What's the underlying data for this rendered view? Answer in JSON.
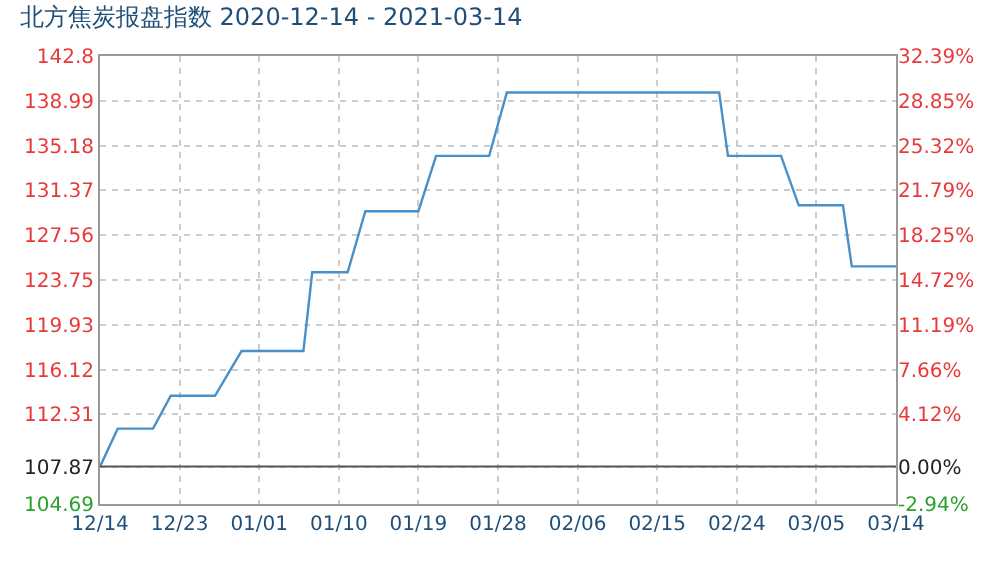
{
  "chart_data": {
    "type": "line",
    "title": "北方焦炭报盘指数 2020-12-14 - 2021-03-14",
    "x": [
      "2020-12-14",
      "2020-12-16",
      "2020-12-20",
      "2020-12-22",
      "2020-12-27",
      "2020-12-30",
      "2021-01-06",
      "2021-01-07",
      "2021-01-11",
      "2021-01-13",
      "2021-01-19",
      "2021-01-21",
      "2021-01-27",
      "2021-01-29",
      "2021-02-22",
      "2021-02-23",
      "2021-03-01",
      "2021-03-03",
      "2021-03-08",
      "2021-03-09",
      "2021-03-14"
    ],
    "series": [
      {
        "color": "#4a90c8",
        "values": [
          107.87,
          111.1,
          111.1,
          113.9,
          113.9,
          117.7,
          117.7,
          124.4,
          124.4,
          129.6,
          129.6,
          134.3,
          134.3,
          139.7,
          139.7,
          134.3,
          134.3,
          130.1,
          130.1,
          124.9,
          124.9
        ]
      }
    ],
    "xlim": [
      "2020-12-14",
      "2021-03-14"
    ],
    "xticks": [
      {
        "value": "2020-12-14",
        "label": "12/14"
      },
      {
        "value": "2020-12-23",
        "label": "12/23"
      },
      {
        "value": "2021-01-01",
        "label": "01/01"
      },
      {
        "value": "2021-01-10",
        "label": "01/10"
      },
      {
        "value": "2021-01-19",
        "label": "01/19"
      },
      {
        "value": "2021-01-28",
        "label": "01/28"
      },
      {
        "value": "2021-02-06",
        "label": "02/06"
      },
      {
        "value": "2021-02-15",
        "label": "02/15"
      },
      {
        "value": "2021-02-24",
        "label": "02/24"
      },
      {
        "value": "2021-03-05",
        "label": "03/05"
      },
      {
        "value": "2021-03-14",
        "label": "03/14"
      }
    ],
    "ylim": [
      104.69,
      142.8
    ],
    "yticks": [
      104.69,
      107.87,
      112.31,
      116.12,
      119.93,
      123.75,
      127.56,
      131.37,
      135.18,
      138.99,
      142.8
    ],
    "y2lim": [
      -2.94,
      32.39
    ],
    "y2ticks": [
      {
        "value": -2.94,
        "label": "-2.94%"
      },
      {
        "value": 0,
        "label": "0.00%"
      },
      {
        "value": 4.12,
        "label": "4.12%"
      },
      {
        "value": 7.66,
        "label": "7.66%"
      },
      {
        "value": 11.19,
        "label": "11.19%"
      },
      {
        "value": 14.72,
        "label": "14.72%"
      },
      {
        "value": 18.25,
        "label": "18.25%"
      },
      {
        "value": 21.79,
        "label": "21.79%"
      },
      {
        "value": 25.32,
        "label": "25.32%"
      },
      {
        "value": 28.85,
        "label": "28.85%"
      },
      {
        "value": 32.39,
        "label": "32.39%"
      }
    ],
    "ref_lines": [
      {
        "axis": "y",
        "value": 107.87,
        "color": "#555555"
      }
    ],
    "grid": true,
    "marker": "none",
    "line_style": "solid"
  }
}
